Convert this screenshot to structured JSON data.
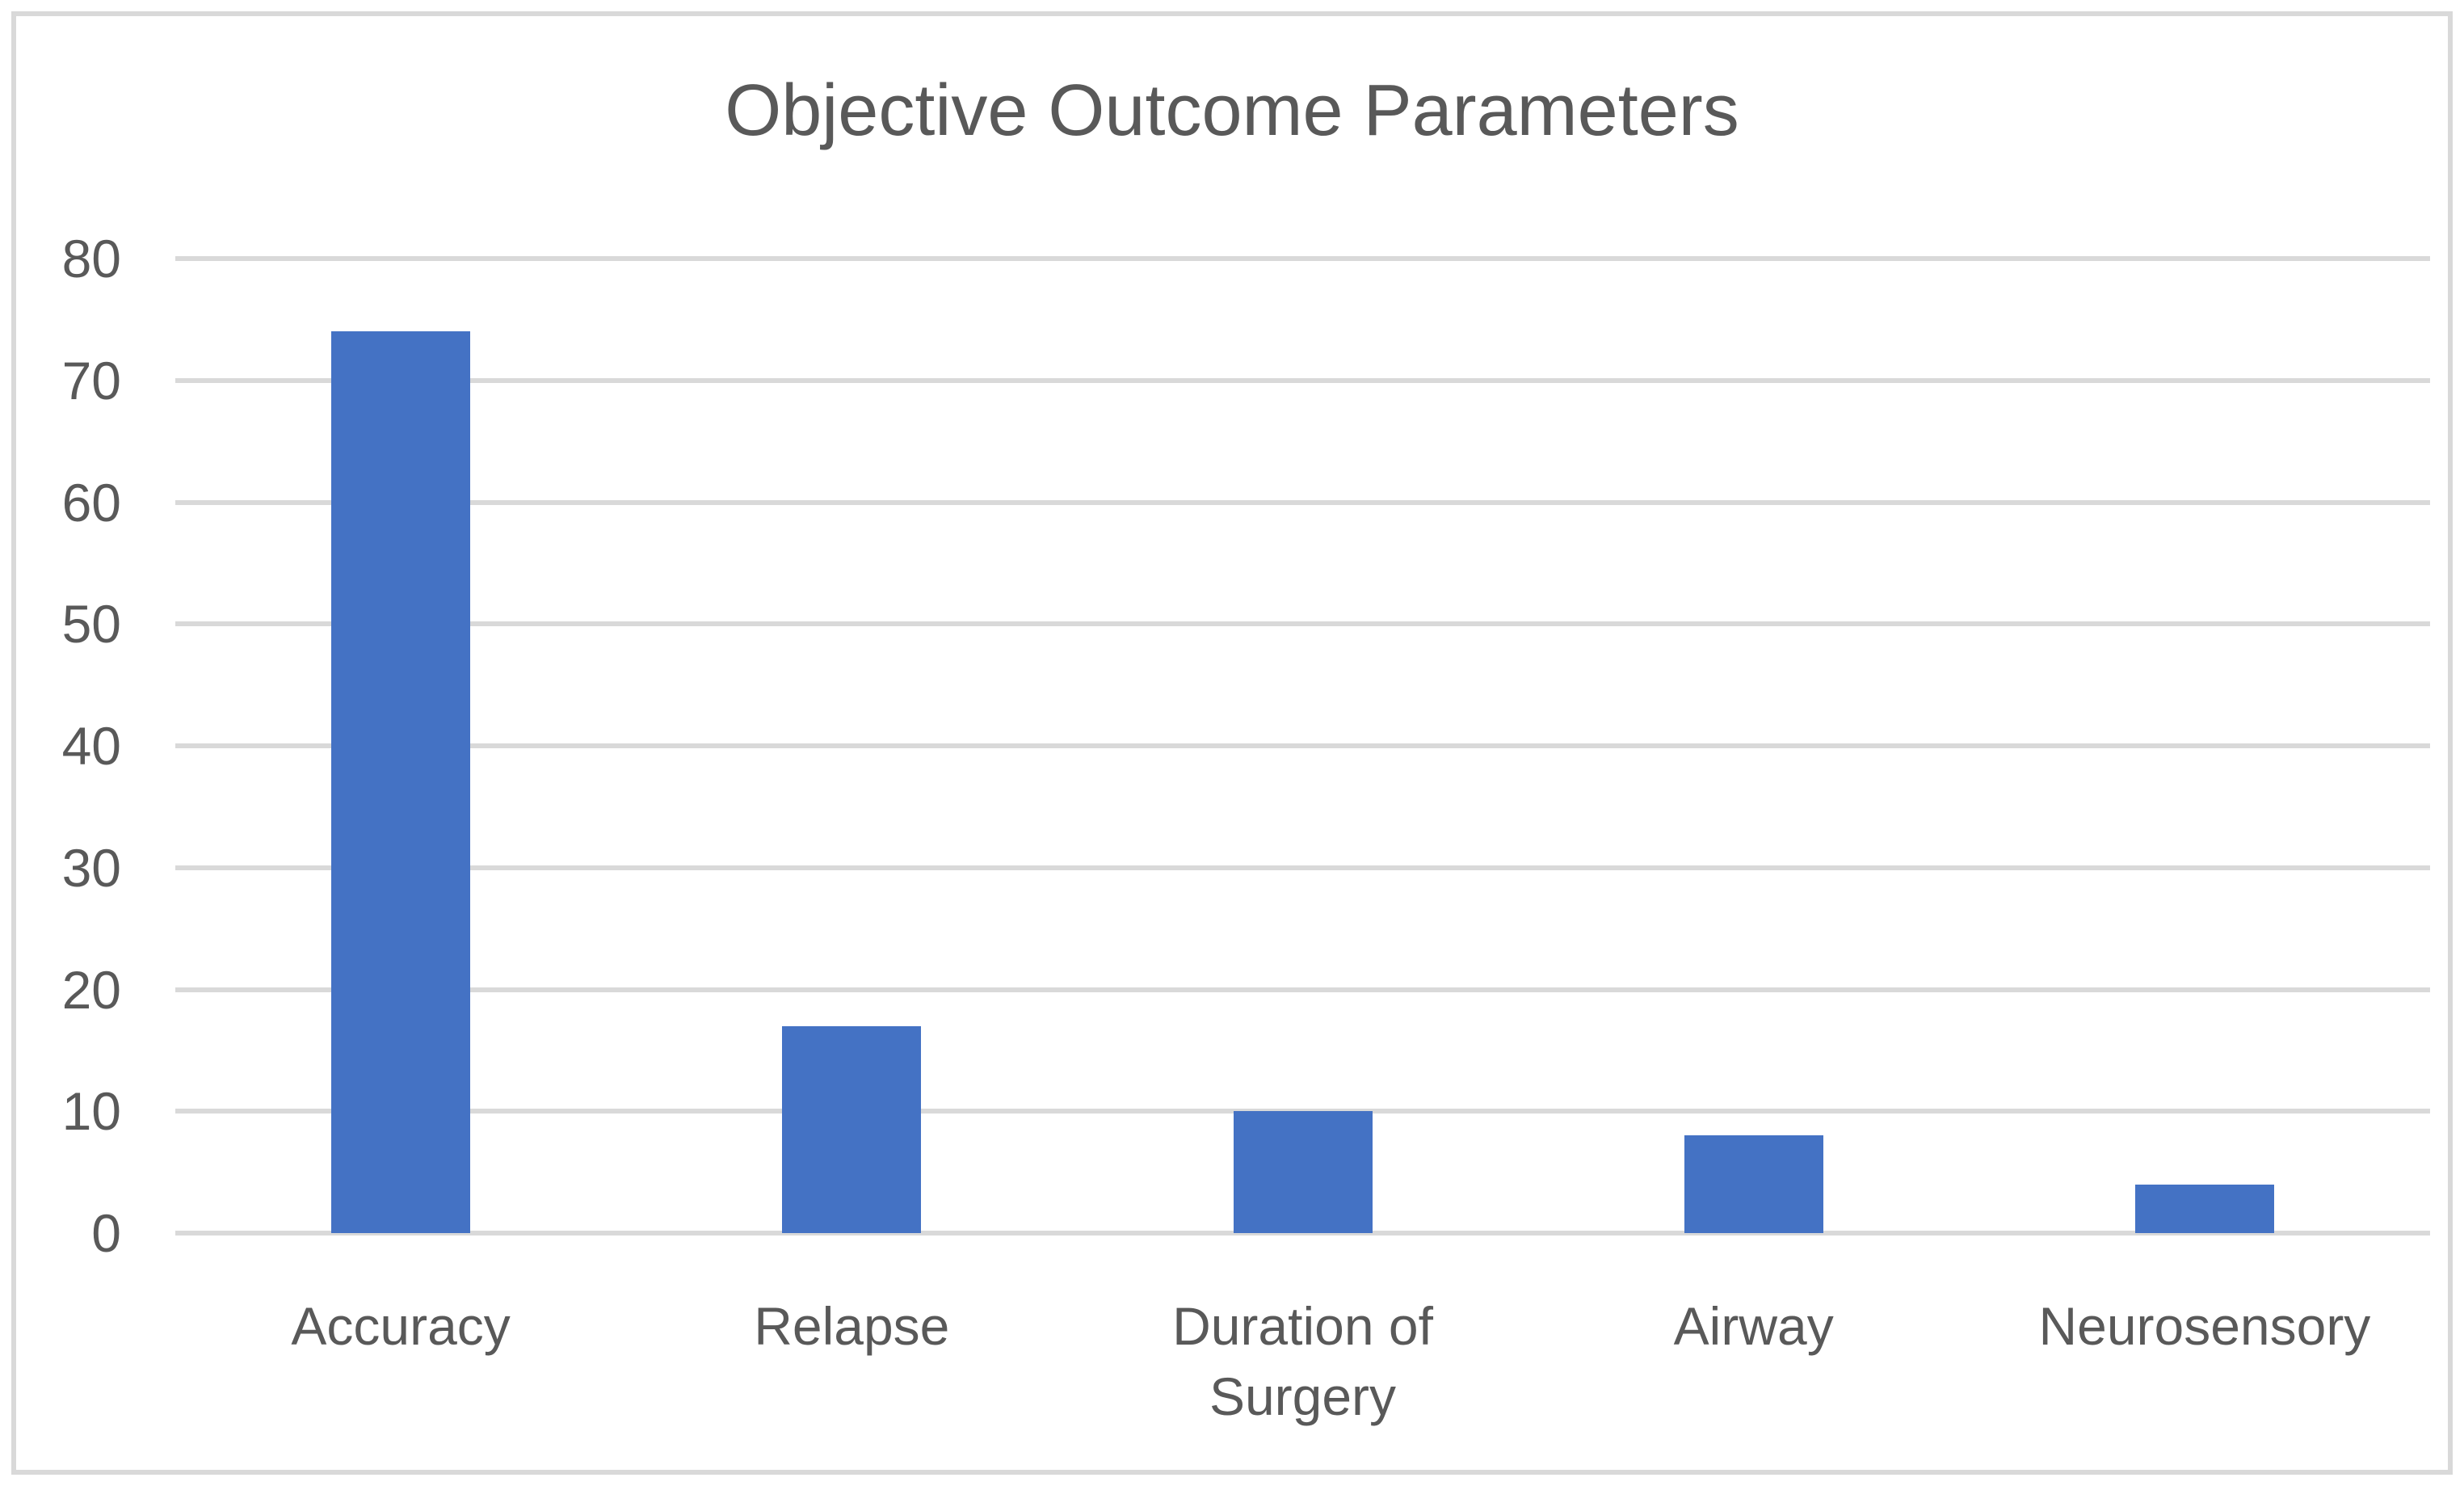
{
  "chart_data": {
    "type": "bar",
    "title": "Objective Outcome Parameters",
    "categories": [
      "Accuracy",
      "Relapse",
      "Duration of Surgery",
      "Airway",
      "Neurosensory"
    ],
    "values": [
      74,
      17,
      10,
      8,
      4
    ],
    "xlabel": "",
    "ylabel": "",
    "ylim": [
      0,
      80
    ],
    "yticks": [
      0,
      10,
      20,
      30,
      40,
      50,
      60,
      70,
      80
    ],
    "grid": true,
    "legend_position": "none",
    "bar_color": "#4472C4",
    "gridline_color": "#D9D9D9",
    "text_color": "#595959",
    "border_color": "#D9D9D9"
  }
}
